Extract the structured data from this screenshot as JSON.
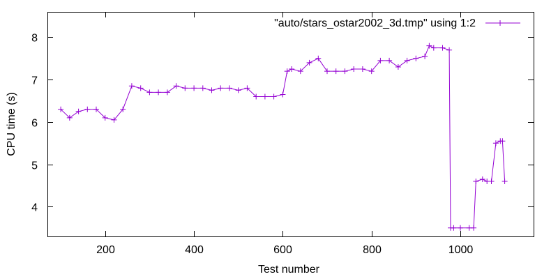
{
  "chart_data": {
    "type": "line",
    "xlabel": "Test number",
    "ylabel": "CPU time (s)",
    "xlim": [
      70,
      1165
    ],
    "ylim": [
      3.3,
      8.6
    ],
    "xticks": [
      200,
      400,
      600,
      800,
      1000
    ],
    "yticks": [
      4,
      5,
      6,
      7,
      8
    ],
    "tick_labels": {
      "x": [
        "200",
        "400",
        "600",
        "800",
        "1000"
      ],
      "y": [
        "4",
        "5",
        "6",
        "7",
        "8"
      ]
    },
    "grid": false,
    "legend_position": "top-right",
    "series": [
      {
        "name": "\"auto/stars_ostar2002_3d.tmp\" using 1:2",
        "color": "#9400d3",
        "marker": "plus",
        "x": [
          100,
          120,
          140,
          160,
          180,
          200,
          220,
          240,
          260,
          280,
          300,
          320,
          340,
          360,
          380,
          400,
          420,
          440,
          460,
          480,
          500,
          520,
          540,
          560,
          580,
          600,
          610,
          620,
          640,
          660,
          680,
          700,
          720,
          740,
          760,
          780,
          800,
          820,
          840,
          860,
          880,
          900,
          920,
          930,
          940,
          960,
          975,
          978,
          985,
          1000,
          1020,
          1030,
          1035,
          1050,
          1060,
          1070,
          1080,
          1090,
          1095,
          1100
        ],
        "y": [
          6.3,
          6.1,
          6.25,
          6.3,
          6.3,
          6.1,
          6.05,
          6.3,
          6.85,
          6.8,
          6.7,
          6.7,
          6.7,
          6.85,
          6.8,
          6.8,
          6.8,
          6.75,
          6.8,
          6.8,
          6.75,
          6.8,
          6.6,
          6.6,
          6.6,
          6.65,
          7.2,
          7.25,
          7.2,
          7.4,
          7.5,
          7.2,
          7.2,
          7.2,
          7.25,
          7.25,
          7.2,
          7.45,
          7.45,
          7.3,
          7.45,
          7.5,
          7.55,
          7.8,
          7.75,
          7.75,
          7.7,
          3.5,
          3.5,
          3.5,
          3.5,
          3.5,
          4.6,
          4.65,
          4.6,
          4.6,
          5.5,
          5.55,
          5.55,
          4.6
        ]
      }
    ]
  }
}
